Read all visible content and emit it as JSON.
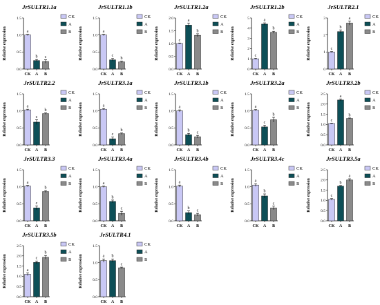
{
  "colors": {
    "CK": "#c9c8f5",
    "A": "#0d4f57",
    "B": "#8a8a8a"
  },
  "legend": [
    "CK",
    "A",
    "B"
  ],
  "chart_data": [
    {
      "type": "bar",
      "title": "JrSULTR1.1a",
      "ylabel": "Relative expression",
      "categories": [
        "CK",
        "A",
        "B"
      ],
      "values": [
        1.0,
        0.25,
        0.22
      ],
      "errors": [
        0.02,
        0.03,
        0.05
      ],
      "labels": [
        "a",
        "b",
        "c"
      ],
      "ylim": [
        0,
        1.5
      ],
      "yticks": [
        "0.0",
        "0.5",
        "1.0",
        "1.5"
      ]
    },
    {
      "type": "bar",
      "title": "JrSULTR1.1b",
      "ylabel": "Relative expression",
      "categories": [
        "CK",
        "A",
        "B"
      ],
      "values": [
        1.0,
        0.27,
        0.21
      ],
      "errors": [
        0.02,
        0.04,
        0.02
      ],
      "labels": [
        "a",
        "c",
        "b"
      ],
      "ylim": [
        0,
        1.5
      ],
      "yticks": [
        "0.0",
        "0.5",
        "1.0",
        "1.5"
      ]
    },
    {
      "type": "bar",
      "title": "JrSULTR1.2a",
      "ylabel": "Relative expression",
      "categories": [
        "CK",
        "A",
        "B"
      ],
      "values": [
        1.0,
        1.72,
        1.32
      ],
      "errors": [
        0.02,
        0.08,
        0.06
      ],
      "labels": [
        "c",
        "a",
        "b"
      ],
      "ylim": [
        0,
        2.0
      ],
      "yticks": [
        "0.0",
        "0.5",
        "1.0",
        "1.5",
        "2.0"
      ]
    },
    {
      "type": "bar",
      "title": "JrSULTR1.2b",
      "ylabel": "Relative expression",
      "categories": [
        "CK",
        "A",
        "B"
      ],
      "values": [
        1.0,
        4.4,
        3.6
      ],
      "errors": [
        0.05,
        0.12,
        0.1
      ],
      "labels": [
        "c",
        "a",
        "b"
      ],
      "ylim": [
        0,
        5
      ],
      "yticks": [
        "0",
        "1",
        "2",
        "3",
        "4",
        "5"
      ]
    },
    {
      "type": "bar",
      "title": "JrSULTR2.1",
      "ylabel": "Relative expression",
      "categories": [
        "CK",
        "A",
        "B"
      ],
      "values": [
        1.0,
        2.2,
        2.7
      ],
      "errors": [
        0.03,
        0.1,
        0.12
      ],
      "labels": [
        "c",
        "b",
        "a"
      ],
      "ylim": [
        0,
        3
      ],
      "yticks": [
        "0",
        "1",
        "2",
        "3"
      ]
    },
    {
      "type": "bar",
      "title": "JrSULTR2.2",
      "ylabel": "Relative expression",
      "categories": [
        "CK",
        "A",
        "B"
      ],
      "values": [
        1.03,
        0.67,
        0.92
      ],
      "errors": [
        0.02,
        0.07,
        0.02
      ],
      "labels": [
        "a",
        "c",
        "b"
      ],
      "ylim": [
        0,
        1.5
      ],
      "yticks": [
        "0.0",
        "0.5",
        "1.0",
        "1.5"
      ]
    },
    {
      "type": "bar",
      "title": "JrSULTR3.1a",
      "ylabel": "Relative expression",
      "categories": [
        "CK",
        "A",
        "B"
      ],
      "values": [
        1.05,
        0.18,
        0.33
      ],
      "errors": [
        0.02,
        0.05,
        0.02
      ],
      "labels": [
        "a",
        "c",
        "b"
      ],
      "ylim": [
        0,
        1.5
      ],
      "yticks": [
        "0.0",
        "0.5",
        "1.0",
        "1.5"
      ]
    },
    {
      "type": "bar",
      "title": "JrSULTR3.1b",
      "ylabel": "Relative expression",
      "categories": [
        "CK",
        "A",
        "B"
      ],
      "values": [
        1.0,
        0.3,
        0.24
      ],
      "errors": [
        0.03,
        0.04,
        0.04
      ],
      "labels": [
        "a",
        "b",
        "c"
      ],
      "ylim": [
        0,
        1.5
      ],
      "yticks": [
        "0.0",
        "0.5",
        "1.0",
        "1.5"
      ]
    },
    {
      "type": "bar",
      "title": "JrSULTR3.2a",
      "ylabel": "Relative expression",
      "categories": [
        "CK",
        "A",
        "B"
      ],
      "values": [
        1.02,
        0.53,
        0.74
      ],
      "errors": [
        0.02,
        0.05,
        0.07
      ],
      "labels": [
        "a",
        "c",
        "b"
      ],
      "ylim": [
        0,
        1.5
      ],
      "yticks": [
        "0.0",
        "0.5",
        "1.0",
        "1.5"
      ]
    },
    {
      "type": "bar",
      "title": "JrSULTR3.2b",
      "ylabel": "Relative expression",
      "categories": [
        "CK",
        "A",
        "B"
      ],
      "values": [
        1.05,
        2.2,
        1.3
      ],
      "errors": [
        0.02,
        0.05,
        0.02
      ],
      "labels": [
        "c",
        "a",
        "b"
      ],
      "ylim": [
        0,
        2.5
      ],
      "yticks": [
        "0.0",
        "0.5",
        "1.0",
        "1.5",
        "2.0",
        "2.5"
      ]
    },
    {
      "type": "bar",
      "title": "JrSULTR3.3",
      "ylabel": "Relative expression",
      "categories": [
        "CK",
        "A",
        "B"
      ],
      "values": [
        1.02,
        0.38,
        0.86
      ],
      "errors": [
        0.02,
        0.06,
        0.03
      ],
      "labels": [
        "a",
        "c",
        "b"
      ],
      "ylim": [
        0,
        1.5
      ],
      "yticks": [
        "0.0",
        "0.5",
        "1.0",
        "1.5"
      ]
    },
    {
      "type": "bar",
      "title": "JrSULTR3.4a",
      "ylabel": "Relative expression",
      "categories": [
        "CK",
        "A",
        "B"
      ],
      "values": [
        1.0,
        0.57,
        0.22
      ],
      "errors": [
        0.02,
        0.04,
        0.06
      ],
      "labels": [
        "a",
        "b",
        "c"
      ],
      "ylim": [
        0,
        1.5
      ],
      "yticks": [
        "0.0",
        "0.5",
        "1.0",
        "1.5"
      ]
    },
    {
      "type": "bar",
      "title": "JrSULTR3.4b",
      "ylabel": "Relative expression",
      "categories": [
        "CK",
        "A",
        "B"
      ],
      "values": [
        1.02,
        0.24,
        0.18
      ],
      "errors": [
        0.03,
        0.05,
        0.04
      ],
      "labels": [
        "a",
        "b",
        "c"
      ],
      "ylim": [
        0,
        1.5
      ],
      "yticks": [
        "0.0",
        "0.5",
        "1.0",
        "1.5"
      ]
    },
    {
      "type": "bar",
      "title": "JrSULTR3.4c",
      "ylabel": "Relative expression",
      "categories": [
        "CK",
        "A",
        "B"
      ],
      "values": [
        1.05,
        0.73,
        0.38
      ],
      "errors": [
        0.04,
        0.06,
        0.05
      ],
      "labels": [
        "a",
        "b",
        "c"
      ],
      "ylim": [
        0,
        1.5
      ],
      "yticks": [
        "0.0",
        "0.5",
        "1.0",
        "1.5"
      ]
    },
    {
      "type": "bar",
      "title": "JrSULTR3.5a",
      "ylabel": "Relative expression",
      "categories": [
        "CK",
        "A",
        "B"
      ],
      "values": [
        1.05,
        1.7,
        2.0
      ],
      "errors": [
        0.04,
        0.03,
        0.06
      ],
      "labels": [
        "c",
        "b",
        "a"
      ],
      "ylim": [
        0,
        2.5
      ],
      "yticks": [
        "0.0",
        "0.5",
        "1.0",
        "1.5",
        "2.0",
        "2.5"
      ]
    },
    {
      "type": "bar",
      "title": "JrSULTR3.5b",
      "ylabel": "Relative expression",
      "categories": [
        "CK",
        "A",
        "B"
      ],
      "values": [
        1.1,
        1.68,
        1.93
      ],
      "errors": [
        0.07,
        0.07,
        0.09
      ],
      "labels": [
        "a",
        "c",
        "b"
      ],
      "ylim": [
        0,
        2.5
      ],
      "yticks": [
        "0.0",
        "0.5",
        "1.0",
        "1.5",
        "2.0",
        "2.5"
      ]
    },
    {
      "type": "bar",
      "title": "JrSULTR4.1",
      "ylabel": "Relative expression",
      "categories": [
        "CK",
        "A",
        "B"
      ],
      "values": [
        1.06,
        1.06,
        0.85
      ],
      "errors": [
        0.05,
        0.05,
        0.02
      ],
      "labels": [
        "a",
        "b",
        "c"
      ],
      "ylim": [
        0,
        1.5
      ],
      "yticks": [
        "0.0",
        "0.5",
        "1.0",
        "1.5"
      ]
    }
  ]
}
